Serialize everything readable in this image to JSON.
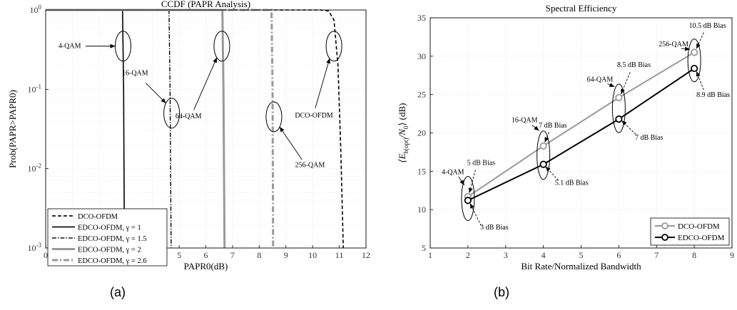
{
  "panel_labels": [
    "(a)",
    "(b)"
  ],
  "chart_data": [
    {
      "type": "line",
      "title": "CCDF (PAPR Analysis)",
      "xlabel": "PAPR0(dB)",
      "ylabel": "Prob(PAPR>PAPR0)",
      "xlim": [
        0,
        12
      ],
      "ylim": [
        0.001,
        1
      ],
      "yscale": "log",
      "grid": true,
      "x_ticks": [
        "0",
        "1",
        "2",
        "3",
        "4",
        "5",
        "6",
        "7",
        "8",
        "9",
        "10",
        "11",
        "12"
      ],
      "y_ticks": [
        "10^-3",
        "10^-2",
        "10^-1",
        "10^0"
      ],
      "legend_position": "bottom-left",
      "series": [
        {
          "name": "DCO-OFDM",
          "style": "dashed",
          "color": "#000000",
          "x": [
            0,
            10.3,
            10.6,
            10.8,
            10.95,
            11.05,
            11.15
          ],
          "y": [
            1,
            1,
            0.97,
            0.75,
            0.2,
            0.02,
            0.001
          ]
        },
        {
          "name": "EDCO-OFDM, γ = 1",
          "style": "solid",
          "color": "#000000",
          "x": [
            0,
            2.88,
            2.92,
            2.95
          ],
          "y": [
            1,
            1,
            0.1,
            0.001
          ]
        },
        {
          "name": "EDCO-OFDM, γ = 1.5",
          "style": "dashdot",
          "color": "#000000",
          "x": [
            0,
            4.62,
            4.66,
            4.7
          ],
          "y": [
            1,
            1,
            0.1,
            0.001
          ]
        },
        {
          "name": "EDCO-OFDM, γ = 2",
          "style": "solid-thick",
          "color": "#999999",
          "x": [
            0,
            6.62,
            6.66,
            6.7
          ],
          "y": [
            1,
            1,
            0.1,
            0.001
          ]
        },
        {
          "name": "EDCO-OFDM, γ = 2.6",
          "style": "dashdot-thick",
          "color": "#999999",
          "x": [
            0,
            8.46,
            8.5,
            8.52
          ],
          "y": [
            1,
            1,
            0.1,
            0.001
          ]
        }
      ],
      "annotations": [
        {
          "text": "4-QAM",
          "x": 2.9,
          "y": 0.35
        },
        {
          "text": "16-QAM",
          "x": 4.72,
          "y": 0.05
        },
        {
          "text": "64-QAM",
          "x": 6.6,
          "y": 0.35
        },
        {
          "text": "256-QAM",
          "x": 8.55,
          "y": 0.045
        },
        {
          "text": "DCO-OFDM",
          "x": 10.8,
          "y": 0.35
        }
      ]
    },
    {
      "type": "line",
      "title": "Spectral Efficiency",
      "xlabel": "Bit Rate/Normalized Bandwidth",
      "ylabel": "⟨E_b(opt)/N_0⟩ (dB)",
      "xlim": [
        1,
        9
      ],
      "ylim": [
        5,
        35
      ],
      "grid": true,
      "x_ticks": [
        "1",
        "2",
        "3",
        "4",
        "5",
        "6",
        "7",
        "8",
        "9"
      ],
      "y_ticks": [
        "5",
        "10",
        "15",
        "20",
        "25",
        "30",
        "35"
      ],
      "legend_position": "bottom-right",
      "series": [
        {
          "name": "DCO-OFDM",
          "color": "#999999",
          "marker": "circle",
          "x": [
            2,
            4,
            6,
            8
          ],
          "y": [
            11.7,
            18.3,
            24.6,
            30.5
          ]
        },
        {
          "name": "EDCO-OFDM",
          "color": "#000000",
          "marker": "circle",
          "x": [
            2,
            4,
            6,
            8
          ],
          "y": [
            11.2,
            15.9,
            21.8,
            28.4
          ]
        }
      ],
      "annotations": [
        {
          "text": "4-QAM",
          "x": 2,
          "y": 11.5
        },
        {
          "text": "16-QAM",
          "x": 4,
          "y": 17
        },
        {
          "text": "64-QAM",
          "x": 6,
          "y": 23
        },
        {
          "text": "256-QAM",
          "x": 8,
          "y": 29.5
        },
        {
          "text": "5 dB Bias",
          "series": "DCO-OFDM",
          "x": 2,
          "y": 11.7
        },
        {
          "text": "3 dB Bias",
          "series": "EDCO-OFDM",
          "x": 2,
          "y": 11.2
        },
        {
          "text": "7 dB Bias",
          "series": "DCO-OFDM",
          "x": 4,
          "y": 18.3
        },
        {
          "text": "5.1 dB Bias",
          "series": "EDCO-OFDM",
          "x": 4,
          "y": 15.9
        },
        {
          "text": "8.5 dB Bias",
          "series": "DCO-OFDM",
          "x": 6,
          "y": 24.6
        },
        {
          "text": "7 dB Bias",
          "series": "EDCO-OFDM",
          "x": 6,
          "y": 21.8
        },
        {
          "text": "10.5 dB Bias",
          "series": "DCO-OFDM",
          "x": 8,
          "y": 30.5
        },
        {
          "text": "8.9 dB Bias",
          "series": "EDCO-OFDM",
          "x": 8,
          "y": 28.4
        }
      ]
    }
  ]
}
